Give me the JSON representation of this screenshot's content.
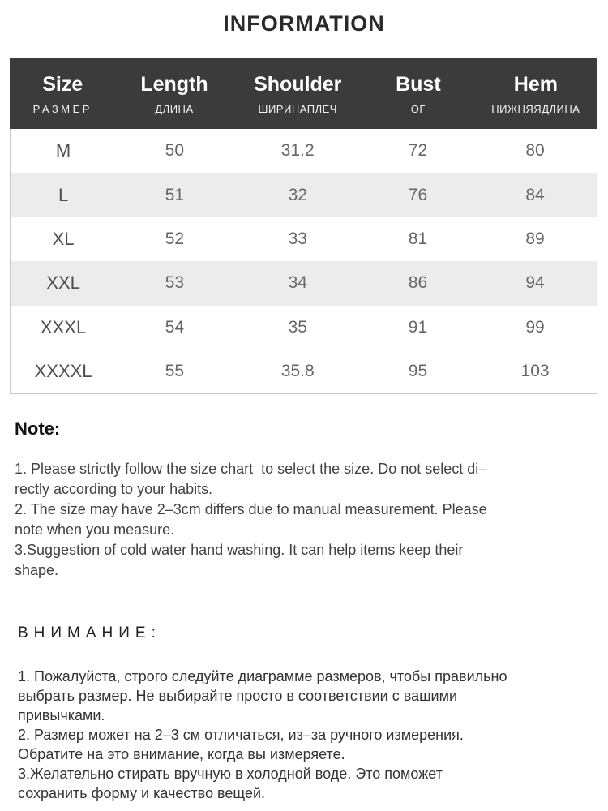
{
  "page": {
    "title": "INFORMATION"
  },
  "size_chart": {
    "columns": [
      {
        "en": "Size",
        "ru": "РАЗМЕР"
      },
      {
        "en": "Length",
        "ru": "ДЛИНА"
      },
      {
        "en": "Shoulder",
        "ru": "ШИРИНАПЛЕЧ"
      },
      {
        "en": "Bust",
        "ru": "ОГ"
      },
      {
        "en": "Hem",
        "ru": "НИЖНЯЯДЛИНА"
      }
    ],
    "rows": [
      {
        "size": "M",
        "length": "50",
        "shoulder": "31.2",
        "bust": "72",
        "hem": "80"
      },
      {
        "size": "L",
        "length": "51",
        "shoulder": "32",
        "bust": "76",
        "hem": "84"
      },
      {
        "size": "XL",
        "length": "52",
        "shoulder": "33",
        "bust": "81",
        "hem": "89"
      },
      {
        "size": "XXL",
        "length": "53",
        "shoulder": "34",
        "bust": "86",
        "hem": "94"
      },
      {
        "size": "XXXL",
        "length": "54",
        "shoulder": "35",
        "bust": "91",
        "hem": "99"
      },
      {
        "size": "XXXXL",
        "length": "55",
        "shoulder": "35.8",
        "bust": "95",
        "hem": "103"
      }
    ]
  },
  "note": {
    "heading": "Note:",
    "lines": [
      "1. Please strictly follow the size chart  to select the size. Do not select di–",
      "rectly according to your habits.",
      "2. The size may have 2–3cm differs due to manual measurement. Please",
      "note when you measure.",
      "3.Suggestion of cold water hand washing. It can help items keep their",
      "shape."
    ]
  },
  "attention": {
    "heading": "ВНИМАНИЕ:",
    "lines": [
      "1. Пожалуйста, строго следуйте диаграмме размеров, чтобы правильно",
      "выбрать размер. Не выбирайте просто в соответствии с вашими",
      "привычками.",
      "2. Размер может на 2–3 см отличаться, из–за ручного измерения.",
      "Обратите на это внимание, когда вы измеряете.",
      "3.Желательно стирать вручную в холодной воде. Это поможет",
      "сохранить форму и качество вещей."
    ]
  },
  "colors": {
    "header_bg": "#3b3b3b",
    "header_text": "#ffffff",
    "row_alt_bg": "#ececec",
    "body_text": "#666666",
    "table_border": "#c9c9c9",
    "title_text": "#2a2a2a"
  }
}
